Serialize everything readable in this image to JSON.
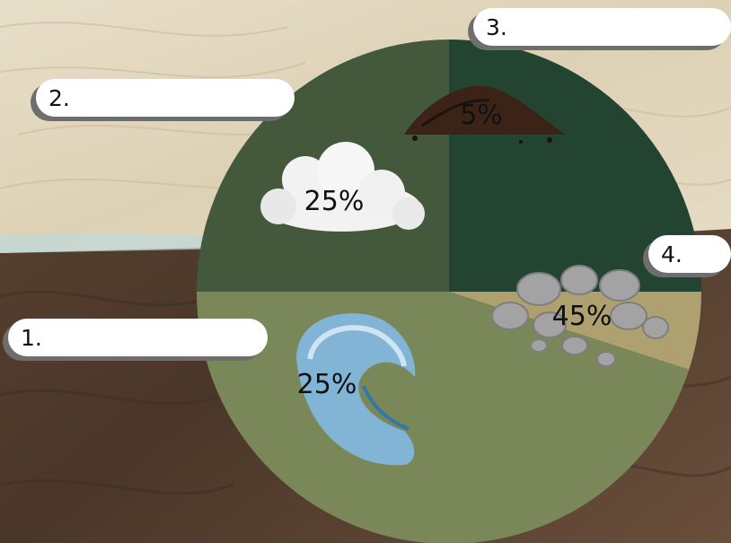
{
  "chart_data": {
    "type": "pie",
    "title": "",
    "slices": [
      {
        "label": "1.",
        "value": 25,
        "display": "25%",
        "color": "#44593c",
        "icon": "water-wave-icon"
      },
      {
        "label": "2.",
        "value": 25,
        "display": "25%",
        "color": "#234431",
        "icon": "cloud-icon"
      },
      {
        "label": "3.",
        "value": 5,
        "display": "5%",
        "color": "#aea06f",
        "icon": "soil-pile-icon"
      },
      {
        "label": "4.",
        "value": 45,
        "display": "45%",
        "color": "#7a8759",
        "icon": "rock-pile-icon"
      }
    ],
    "start_angle_deg": 180,
    "direction": "clockwise",
    "legend": "callout labels",
    "colors": {
      "background_sand": "#e4dac2",
      "background_soil": "#55402f",
      "label_box": "#ffffff",
      "label_shadow": "#6e6e6e"
    }
  }
}
